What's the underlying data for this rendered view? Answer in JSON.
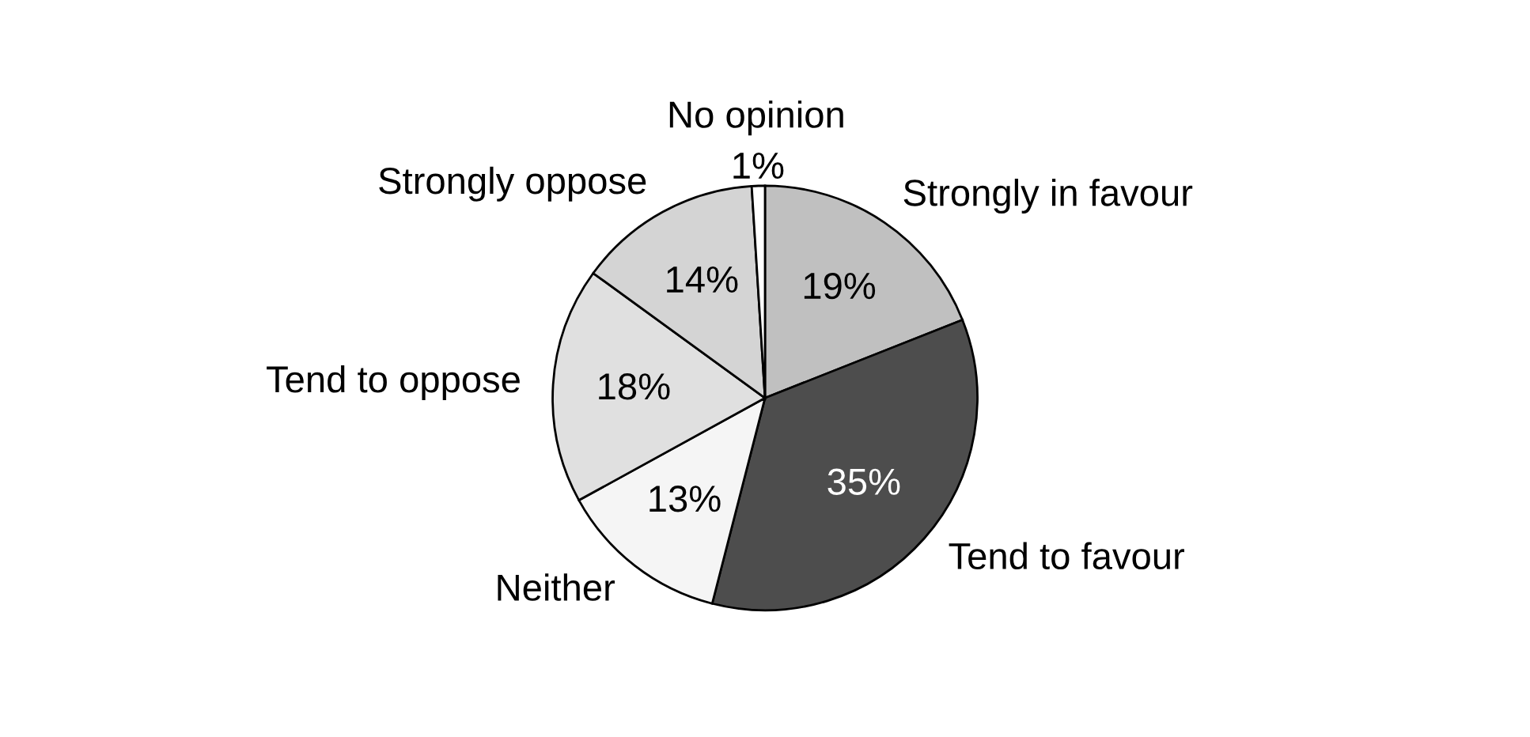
{
  "chart_data": {
    "type": "pie",
    "categories": [
      "Strongly in favour",
      "Tend to favour",
      "Neither",
      "Tend to oppose",
      "Strongly oppose",
      "No opinion"
    ],
    "values": [
      19,
      35,
      13,
      18,
      14,
      1
    ],
    "value_labels": [
      "19%",
      "35%",
      "13%",
      "18%",
      "14%",
      "1%"
    ],
    "colors": [
      "#c0c0c0",
      "#4d4d4d",
      "#f5f5f5",
      "#e0e0e0",
      "#d4d4d4",
      "#ffffff"
    ]
  }
}
